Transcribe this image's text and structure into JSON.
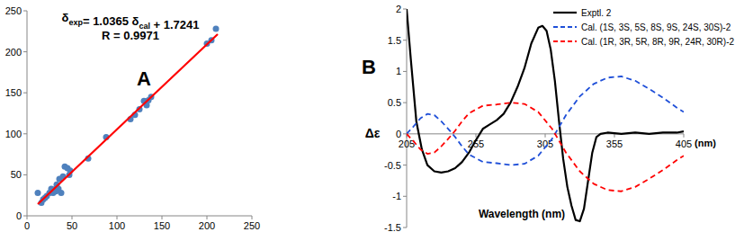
{
  "chart_data": [
    {
      "type": "scatter",
      "title": "A",
      "annotations": [
        "δexp= 1.0365 δcal + 1.7241",
        "R = 0.9971"
      ],
      "xlim": [
        0,
        250
      ],
      "xticks": [
        0,
        50,
        100,
        150,
        200,
        250
      ],
      "ylim": [
        0,
        250
      ],
      "yticks": [
        0,
        50,
        100,
        150,
        200,
        250
      ],
      "grid": false,
      "series": [
        {
          "type": "scatter",
          "color": "#4f81bd",
          "marker": "circle",
          "x": [
            12,
            16,
            18,
            20,
            22,
            25,
            27,
            29,
            30,
            32,
            33,
            35,
            36,
            38,
            40,
            42,
            45,
            47,
            48,
            68,
            88,
            115,
            120,
            125,
            130,
            133,
            135,
            138,
            200,
            205,
            210
          ],
          "values": [
            28,
            16,
            20,
            22,
            24,
            28,
            33,
            28,
            32,
            30,
            38,
            33,
            45,
            28,
            48,
            60,
            58,
            50,
            55,
            70,
            96,
            118,
            123,
            130,
            140,
            135,
            141,
            145,
            210,
            214,
            228
          ]
        },
        {
          "type": "line",
          "color": "#ff0000",
          "line_style": "solid",
          "x": [
            12,
            212
          ],
          "values": [
            14.2,
            221.5
          ]
        }
      ]
    },
    {
      "type": "line",
      "title": "B",
      "x_label": "Wavelength (nm)",
      "y_label": "Δε",
      "annotations": [
        "(nm)"
      ],
      "xlim": [
        205,
        405
      ],
      "xticks": [
        205,
        255,
        305,
        355,
        405
      ],
      "ylim": [
        -1.5,
        2
      ],
      "yticks": [
        -1.5,
        -1,
        -0.5,
        0,
        0.5,
        1,
        1.5,
        2
      ],
      "grid": false,
      "legend": "upper right",
      "series": [
        {
          "name": "Exptl. 2",
          "color": "#000000",
          "line_style": "solid",
          "x": [
            205,
            208,
            212,
            216,
            220,
            225,
            230,
            235,
            240,
            245,
            250,
            255,
            260,
            265,
            270,
            275,
            280,
            285,
            290,
            295,
            300,
            303,
            306,
            309,
            312,
            315,
            318,
            321,
            324,
            327,
            330,
            333,
            336,
            339,
            342,
            345,
            350,
            360,
            370,
            380,
            390,
            400,
            405
          ],
          "values": [
            2.0,
            1.2,
            0.2,
            -0.25,
            -0.5,
            -0.6,
            -0.62,
            -0.6,
            -0.55,
            -0.45,
            -0.3,
            -0.1,
            0.08,
            0.15,
            0.22,
            0.32,
            0.5,
            0.75,
            1.05,
            1.45,
            1.7,
            1.73,
            1.65,
            1.35,
            0.85,
            0.2,
            -0.4,
            -0.85,
            -1.15,
            -1.38,
            -1.4,
            -1.2,
            -0.75,
            -0.3,
            -0.05,
            0.0,
            0.02,
            0.0,
            0.02,
            0.0,
            0.02,
            0.02,
            0.04
          ]
        },
        {
          "name": "Cal. (1S, 3S, 5S, 8S, 9S, 24S, 30S)-2",
          "color": "#1f4fd8",
          "line_style": "dashed",
          "x": [
            205,
            210,
            215,
            220,
            225,
            230,
            235,
            240,
            245,
            250,
            260,
            270,
            280,
            290,
            300,
            310,
            320,
            330,
            340,
            350,
            360,
            370,
            380,
            390,
            400,
            405
          ],
          "values": [
            0.0,
            0.12,
            0.25,
            0.32,
            0.3,
            0.2,
            0.08,
            -0.05,
            -0.2,
            -0.33,
            -0.45,
            -0.47,
            -0.5,
            -0.48,
            -0.35,
            -0.08,
            0.3,
            0.6,
            0.8,
            0.9,
            0.92,
            0.85,
            0.72,
            0.58,
            0.42,
            0.35
          ]
        },
        {
          "name": "Cal. (1R, 3R, 5R, 8R, 9R, 24R, 30R)-2",
          "color": "#ff0000",
          "line_style": "dashed",
          "x": [
            205,
            210,
            215,
            220,
            225,
            230,
            235,
            240,
            245,
            250,
            260,
            270,
            280,
            290,
            300,
            310,
            320,
            330,
            340,
            350,
            360,
            370,
            380,
            390,
            400,
            405
          ],
          "values": [
            0.0,
            -0.12,
            -0.25,
            -0.32,
            -0.3,
            -0.2,
            -0.08,
            0.05,
            0.2,
            0.33,
            0.45,
            0.47,
            0.5,
            0.48,
            0.35,
            0.08,
            -0.3,
            -0.6,
            -0.8,
            -0.9,
            -0.92,
            -0.85,
            -0.72,
            -0.58,
            -0.42,
            -0.35
          ]
        }
      ]
    }
  ]
}
